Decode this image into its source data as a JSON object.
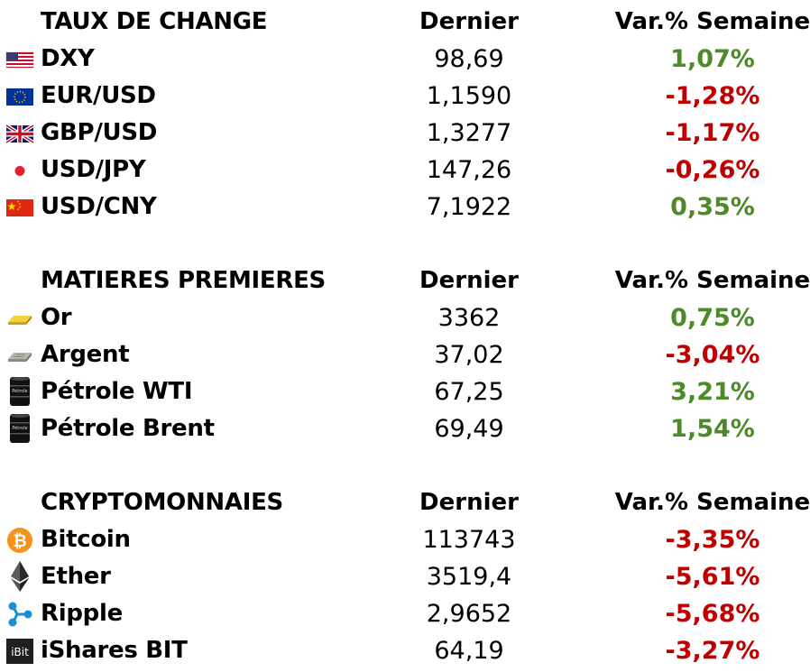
{
  "sections": [
    {
      "title": "TAUX DE CHANGE",
      "col_last": "Dernier",
      "col_var": "Var.% Semaine",
      "rows": [
        {
          "icon": "us-flag-icon",
          "name": "DXY",
          "last": "98,69",
          "var": "1,07%",
          "dir": "up"
        },
        {
          "icon": "eu-flag-icon",
          "name": "EUR/USD",
          "last": "1,1590",
          "var": "-1,28%",
          "dir": "down"
        },
        {
          "icon": "uk-flag-icon",
          "name": "GBP/USD",
          "last": "1,3277",
          "var": "-1,17%",
          "dir": "down"
        },
        {
          "icon": "japan-flag-icon",
          "name": "USD/JPY",
          "last": "147,26",
          "var": "-0,26%",
          "dir": "down"
        },
        {
          "icon": "china-flag-icon",
          "name": "USD/CNY",
          "last": "7,1922",
          "var": "0,35%",
          "dir": "up"
        }
      ]
    },
    {
      "title": "MATIERES PREMIERES",
      "col_last": "Dernier",
      "col_var": "Var.% Semaine",
      "rows": [
        {
          "icon": "gold-bar-icon",
          "name": "Or",
          "last": "3362",
          "var": "0,75%",
          "dir": "up"
        },
        {
          "icon": "silver-bar-icon",
          "name": "Argent",
          "last": "37,02",
          "var": "-3,04%",
          "dir": "down"
        },
        {
          "icon": "oil-barrel-icon",
          "name": "Pétrole WTI",
          "last": "67,25",
          "var": "3,21%",
          "dir": "up"
        },
        {
          "icon": "oil-barrel-icon",
          "name": "Pétrole Brent",
          "last": "69,49",
          "var": "1,54%",
          "dir": "up"
        }
      ]
    },
    {
      "title": "CRYPTOMONNAIES",
      "col_last": "Dernier",
      "col_var": "Var.% Semaine",
      "rows": [
        {
          "icon": "bitcoin-icon",
          "name": "Bitcoin",
          "last": "113743",
          "var": "-3,35%",
          "dir": "down"
        },
        {
          "icon": "ether-icon",
          "name": "Ether",
          "last": "3519,4",
          "var": "-5,61%",
          "dir": "down"
        },
        {
          "icon": "ripple-icon",
          "name": "Ripple",
          "last": "2,9652",
          "var": "-5,68%",
          "dir": "down"
        },
        {
          "icon": "ishares-bit-icon",
          "name": "iShares BIT",
          "last": "64,19",
          "var": "-3,27%",
          "dir": "down"
        }
      ]
    }
  ],
  "colors": {
    "up": "#4e8a2a",
    "down": "#c00000"
  },
  "icon_labels": {
    "ishares": "iBit",
    "oil": "Pétrole"
  }
}
